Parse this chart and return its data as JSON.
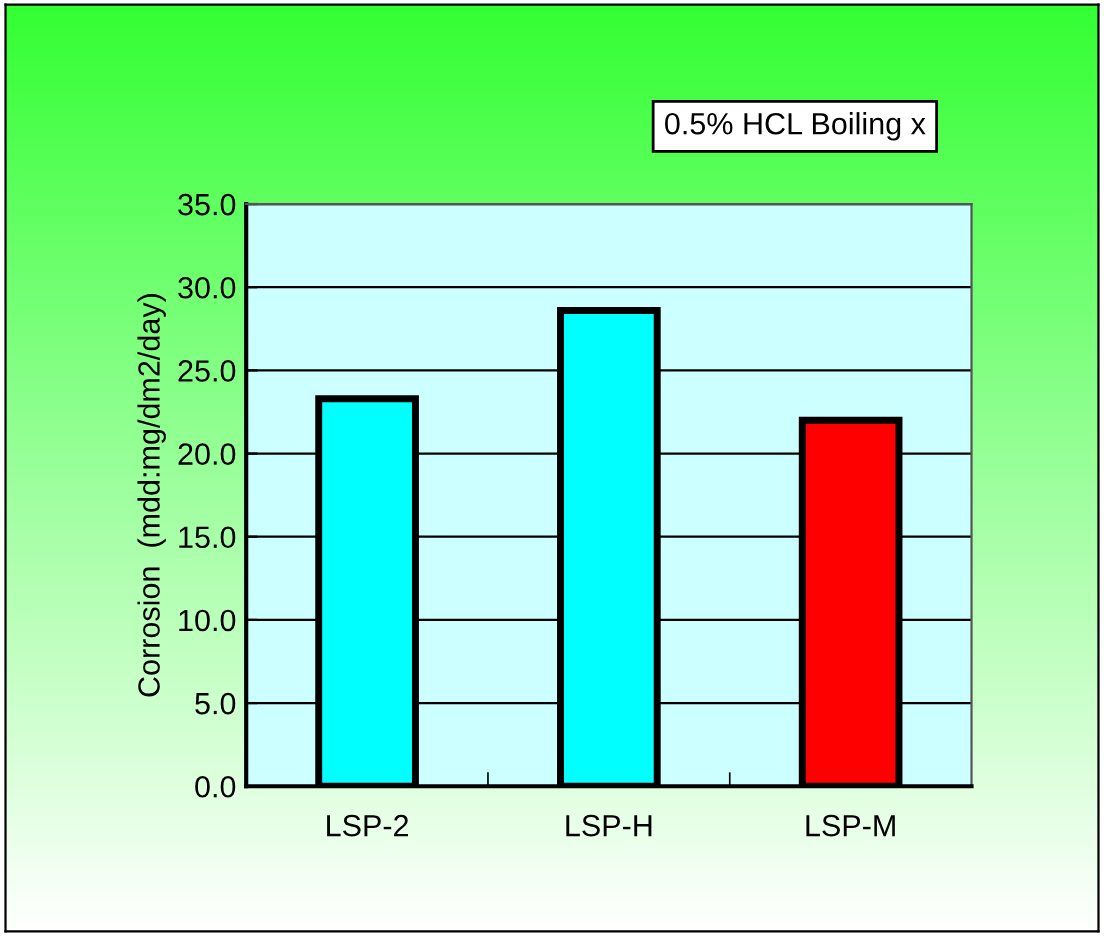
{
  "chart_data": {
    "type": "bar",
    "title": "0.5% HCL Boiling x",
    "ylabel": "Corrosion  (mdd:mg/dm2/day)",
    "categories": [
      "LSP-2",
      "LSP-H",
      "LSP-M"
    ],
    "values": [
      23.3,
      28.6,
      22.0
    ],
    "colors": [
      "#00ffff",
      "#00ffff",
      "#ff0000"
    ],
    "ylim": [
      0,
      35
    ],
    "yticks": [
      {
        "value": 0,
        "label": "0.0"
      },
      {
        "value": 5,
        "label": "5.0"
      },
      {
        "value": 10,
        "label": "10.0"
      },
      {
        "value": 15,
        "label": "15.0"
      },
      {
        "value": 20,
        "label": "20.0"
      },
      {
        "value": 25,
        "label": "25.0"
      },
      {
        "value": 30,
        "label": "30.0"
      },
      {
        "value": 35,
        "label": "35.0"
      }
    ],
    "grid": "y"
  }
}
